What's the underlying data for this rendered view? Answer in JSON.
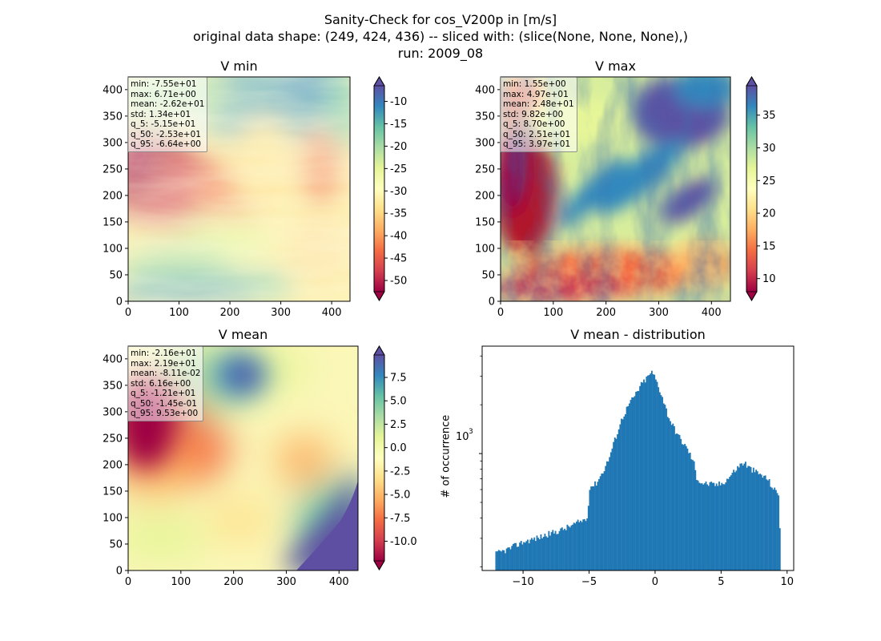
{
  "title": {
    "line1": "Sanity-Check for cos_V200p in [m/s]",
    "line2": "original data shape: (249, 424, 436) -- sliced with: (slice(None, None, None),)",
    "line3": "run: 2009_08"
  },
  "colors": {
    "bar": "#1f77b4",
    "colormap": "Spectral",
    "colormap_stops": [
      "#9e0142",
      "#d53e4f",
      "#f46d43",
      "#fdae61",
      "#fee08b",
      "#ffffbf",
      "#e6f598",
      "#abdda4",
      "#66c2a5",
      "#3288bd",
      "#5e4fa2"
    ]
  },
  "chart_data": [
    {
      "type": "heatmap",
      "name": "v-min",
      "title": "V min",
      "xlim": [
        0,
        436
      ],
      "ylim": [
        0,
        424
      ],
      "xticks": [
        "0",
        "100",
        "200",
        "300",
        "400"
      ],
      "yticks": [
        "0",
        "50",
        "100",
        "150",
        "200",
        "250",
        "300",
        "350",
        "400"
      ],
      "colorbar": {
        "min": -52.5,
        "max": -6.5,
        "ticks": [
          "-10",
          "-15",
          "-20",
          "-25",
          "-30",
          "-35",
          "-40",
          "-45",
          "-50"
        ],
        "extend": "both"
      },
      "stats": [
        "min: -7.55e+01",
        "max: 6.71e+00",
        "mean: -2.62e+01",
        "std: 1.34e+01",
        "q_5: -5.15e+01",
        "q_50: -2.53e+01",
        "q_95: -6.64e+00"
      ]
    },
    {
      "type": "heatmap",
      "name": "v-max",
      "title": "V max",
      "xlim": [
        0,
        436
      ],
      "ylim": [
        0,
        424
      ],
      "xticks": [
        "0",
        "100",
        "200",
        "300",
        "400"
      ],
      "yticks": [
        "0",
        "50",
        "100",
        "150",
        "200",
        "250",
        "300",
        "350",
        "400"
      ],
      "colorbar": {
        "min": 8,
        "max": 39.5,
        "ticks": [
          "35",
          "30",
          "25",
          "20",
          "15",
          "10"
        ],
        "extend": "both"
      },
      "stats": [
        "min: 1.55e+00",
        "max: 4.97e+01",
        "mean: 2.48e+01",
        "std: 9.82e+00",
        "q_5: 8.70e+00",
        "q_50: 2.51e+01",
        "q_95: 3.97e+01"
      ]
    },
    {
      "type": "heatmap",
      "name": "v-mean",
      "title": "V mean",
      "xlim": [
        0,
        436
      ],
      "ylim": [
        0,
        424
      ],
      "xticks": [
        "0",
        "100",
        "200",
        "300",
        "400"
      ],
      "yticks": [
        "0",
        "50",
        "100",
        "150",
        "200",
        "250",
        "300",
        "350",
        "400"
      ],
      "colorbar": {
        "min": -12.1,
        "max": 9.9,
        "ticks": [
          "7.5",
          "5.0",
          "2.5",
          "0.0",
          "-2.5",
          "-5.0",
          "-7.5",
          "-10.0"
        ],
        "extend": "both"
      },
      "stats": [
        "min: -2.16e+01",
        "max: 2.19e+01",
        "mean: -8.11e-02",
        "std: 6.16e+00",
        "q_5: -1.21e+01",
        "q_50: -1.45e-01",
        "q_95: 9.53e+00"
      ]
    },
    {
      "type": "bar",
      "name": "v-mean-distribution",
      "title": "V mean - distribution",
      "ylabel": "# of occurrence",
      "yscale": "log",
      "xlim": [
        -13.1,
        10.5
      ],
      "ylim": [
        190,
        4600
      ],
      "xticks": [
        "−10",
        "−5",
        "0",
        "5",
        "10"
      ],
      "ytick_label": "10",
      "ytick_exp": "3",
      "bin_width": 0.1,
      "x_start": -12.1,
      "x_end": 9.5,
      "anchors": [
        [
          -12.1,
          240
        ],
        [
          -11.5,
          250
        ],
        [
          -11.0,
          260
        ],
        [
          -10.0,
          285
        ],
        [
          -9.0,
          300
        ],
        [
          -8.0,
          320
        ],
        [
          -7.0,
          340
        ],
        [
          -6.0,
          370
        ],
        [
          -5.1,
          400
        ],
        [
          -5.0,
          620
        ],
        [
          -4.5,
          650
        ],
        [
          -4.0,
          760
        ],
        [
          -3.5,
          930
        ],
        [
          -3.0,
          1250
        ],
        [
          -2.5,
          1650
        ],
        [
          -2.0,
          2000
        ],
        [
          -1.5,
          2300
        ],
        [
          -1.0,
          2700
        ],
        [
          -0.5,
          3000
        ],
        [
          -0.3,
          3200
        ],
        [
          0.0,
          2950
        ],
        [
          0.5,
          2300
        ],
        [
          1.0,
          1700
        ],
        [
          1.5,
          1400
        ],
        [
          2.0,
          1200
        ],
        [
          2.5,
          1050
        ],
        [
          3.0,
          850
        ],
        [
          3.1,
          720
        ],
        [
          3.5,
          660
        ],
        [
          4.0,
          650
        ],
        [
          4.5,
          640
        ],
        [
          5.0,
          650
        ],
        [
          5.5,
          700
        ],
        [
          6.0,
          780
        ],
        [
          6.5,
          860
        ],
        [
          6.8,
          880
        ],
        [
          7.0,
          830
        ],
        [
          7.5,
          780
        ],
        [
          8.0,
          740
        ],
        [
          8.5,
          700
        ],
        [
          9.0,
          600
        ],
        [
          9.4,
          560
        ],
        [
          9.5,
          230
        ]
      ]
    }
  ]
}
